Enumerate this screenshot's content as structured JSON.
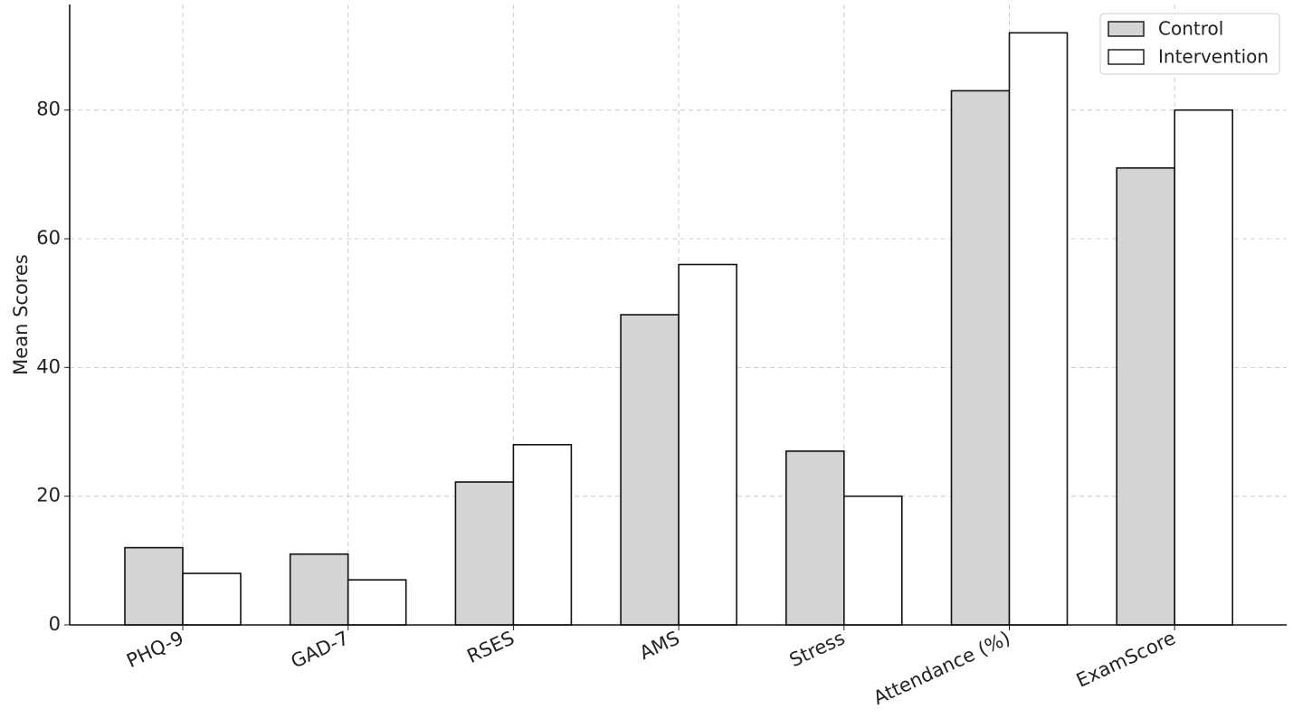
{
  "chart_data": {
    "type": "bar",
    "y_label": "Mean Scores",
    "categories": [
      "PHQ-9",
      "GAD-7",
      "RSES",
      "AMS",
      "Stress",
      "Attendance (%)",
      "ExamScore"
    ],
    "series": [
      {
        "name": "Control",
        "color": "#d3d4d6",
        "values": [
          12,
          11,
          22.2,
          48.2,
          27,
          83,
          71
        ]
      },
      {
        "name": "Intervention",
        "color": "#ffffff",
        "values": [
          8,
          7,
          28,
          56,
          20,
          92,
          80
        ]
      }
    ],
    "ylim": [
      0,
      96.4
    ],
    "yticks": [
      0,
      20,
      40,
      60,
      80
    ],
    "grid": true,
    "legend": "upper right"
  }
}
